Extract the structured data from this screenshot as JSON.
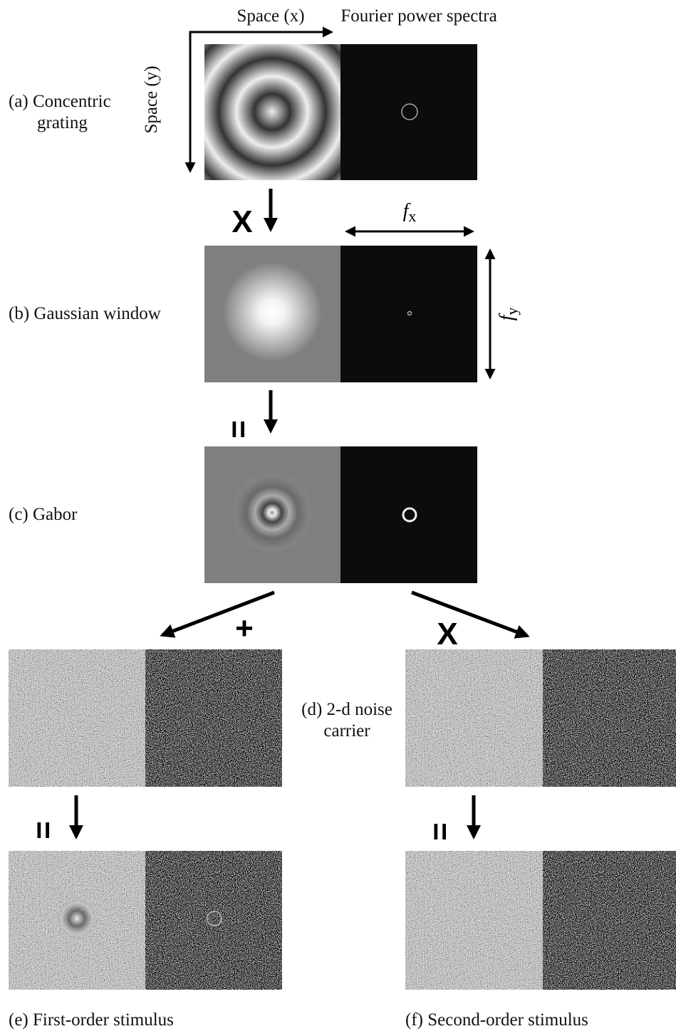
{
  "header": {
    "space_x": "Space (x)",
    "fourier": "Fourier power spectra",
    "space_y": "Space (y)"
  },
  "axes": {
    "fx": {
      "symbol": "f",
      "subscript": "x"
    },
    "fy": {
      "symbol": "f",
      "subscript": "y"
    }
  },
  "panels": {
    "a": {
      "label": [
        "(a) Concentric",
        "grating"
      ]
    },
    "b": {
      "label": [
        "(b) Gaussian window"
      ]
    },
    "c": {
      "label": [
        "(c) Gabor"
      ]
    },
    "d": {
      "label": [
        "(d) 2-d noise",
        "carrier"
      ]
    },
    "e": {
      "label": [
        "(e) First-order stimulus"
      ]
    },
    "f": {
      "label": [
        "(f) Second-order stimulus"
      ]
    }
  },
  "operators": {
    "a_to_b": "X",
    "b_to_c": "=",
    "c_to_e": "+",
    "c_to_f": "X",
    "d_to_e": "=",
    "d_to_f": "="
  }
}
